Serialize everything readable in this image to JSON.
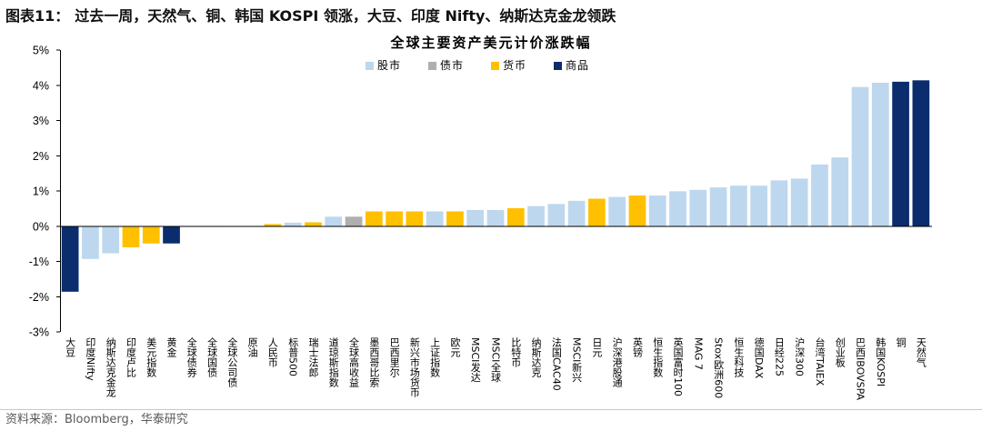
{
  "figure": {
    "label": "图表11：",
    "caption": "过去一周，天然气、铜、韩国 KOSPI 领涨，大豆、印度 Nifty、纳斯达克金龙领跌"
  },
  "source": "资料来源：Bloomberg，华泰研究",
  "chart_data": {
    "type": "bar",
    "title": "全球主要资产美元计价涨跌幅",
    "ylim": [
      -3,
      5
    ],
    "grid": false,
    "legend_position": "top-center",
    "y_ticks": [
      {
        "value": 5,
        "label": "5%"
      },
      {
        "value": 4,
        "label": "4%"
      },
      {
        "value": 3,
        "label": "3%"
      },
      {
        "value": 2,
        "label": "2%"
      },
      {
        "value": 1,
        "label": "1%"
      },
      {
        "value": 0,
        "label": "0%"
      },
      {
        "value": -1,
        "label": "-1%"
      },
      {
        "value": -2,
        "label": "-2%"
      },
      {
        "value": -3,
        "label": "-3%"
      }
    ],
    "categories": [
      "大豆",
      "印度Nifty",
      "纳斯达克金龙",
      "印度卢比",
      "美元指数",
      "黄金",
      "全球债券",
      "全球国债",
      "全球公司债",
      "原油",
      "人民币",
      "标普500",
      "瑞士法郎",
      "道琼斯指数",
      "全球高收益",
      "墨西哥比索",
      "巴西里尔",
      "新兴市场货币",
      "上证指数",
      "欧元",
      "MSCI发达",
      "MSCI全球",
      "比特币",
      "纳斯达克",
      "法国CAC40",
      "MSCI新兴",
      "日元",
      "沪深港股通",
      "英镑",
      "恒生指数",
      "英国富时100",
      "MAG 7",
      "Stox欧洲600",
      "恒生科技",
      "德国DAX",
      "日经225",
      "沪深300",
      "台湾TAIEX",
      "创业板",
      "巴西IBOVSPA",
      "韩国KOSPI",
      "铜",
      "天然气"
    ],
    "series": [
      {
        "name": "股市",
        "color": "#bdd7ee",
        "values": [
          null,
          -0.93,
          -0.77,
          null,
          null,
          null,
          null,
          null,
          null,
          null,
          null,
          0.1,
          null,
          0.27,
          null,
          null,
          null,
          null,
          0.42,
          null,
          0.46,
          0.46,
          null,
          0.57,
          0.63,
          0.72,
          null,
          0.83,
          null,
          0.87,
          0.99,
          1.03,
          1.1,
          1.15,
          1.15,
          1.3,
          1.35,
          1.75,
          1.95,
          3.95,
          4.07,
          null,
          null
        ]
      },
      {
        "name": "债市",
        "color": "#afafaf",
        "values": [
          null,
          null,
          null,
          null,
          null,
          null,
          -0.01,
          -0.02,
          -0.01,
          null,
          null,
          null,
          null,
          null,
          0.27,
          null,
          null,
          null,
          null,
          null,
          null,
          null,
          null,
          null,
          null,
          null,
          null,
          null,
          null,
          null,
          null,
          null,
          null,
          null,
          null,
          null,
          null,
          null,
          null,
          null,
          null,
          null,
          null
        ]
      },
      {
        "name": "货币",
        "color": "#ffc000",
        "values": [
          null,
          null,
          null,
          -0.6,
          -0.49,
          null,
          null,
          null,
          null,
          null,
          0.06,
          null,
          0.11,
          null,
          null,
          0.42,
          0.42,
          0.42,
          null,
          0.42,
          null,
          null,
          0.51,
          null,
          null,
          null,
          0.78,
          null,
          0.87,
          null,
          null,
          null,
          null,
          null,
          null,
          null,
          null,
          null,
          null,
          null,
          null,
          null,
          null
        ]
      },
      {
        "name": "商品",
        "color": "#0b2d6e",
        "values": [
          -1.86,
          null,
          null,
          null,
          null,
          -0.49,
          null,
          null,
          null,
          0.0,
          null,
          null,
          null,
          null,
          null,
          null,
          null,
          null,
          null,
          null,
          null,
          null,
          null,
          null,
          null,
          null,
          null,
          null,
          null,
          null,
          null,
          null,
          null,
          null,
          null,
          null,
          null,
          null,
          null,
          null,
          null,
          4.1,
          4.14
        ]
      }
    ]
  }
}
